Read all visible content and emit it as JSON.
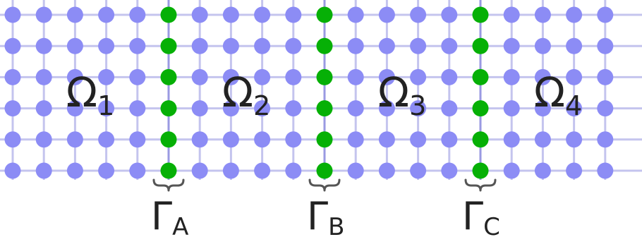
{
  "colors": {
    "background": "#ffffff",
    "interior_node": "#8c8cf5",
    "interface_node": "#06b006",
    "grid_line": "#c4c4ee",
    "interface_line": "#9a9ae2",
    "label_text": "#222222",
    "brace": "#555555"
  },
  "grid": {
    "columns": 20,
    "rows": 6,
    "interface_columns": [
      5,
      10,
      15
    ]
  },
  "subdomains": [
    {
      "symbol": "Ω",
      "index": "1"
    },
    {
      "symbol": "Ω",
      "index": "2"
    },
    {
      "symbol": "Ω",
      "index": "3"
    },
    {
      "symbol": "Ω",
      "index": "4"
    }
  ],
  "interfaces": [
    {
      "symbol": "Γ",
      "index": "A"
    },
    {
      "symbol": "Γ",
      "index": "B"
    },
    {
      "symbol": "Γ",
      "index": "C"
    }
  ]
}
